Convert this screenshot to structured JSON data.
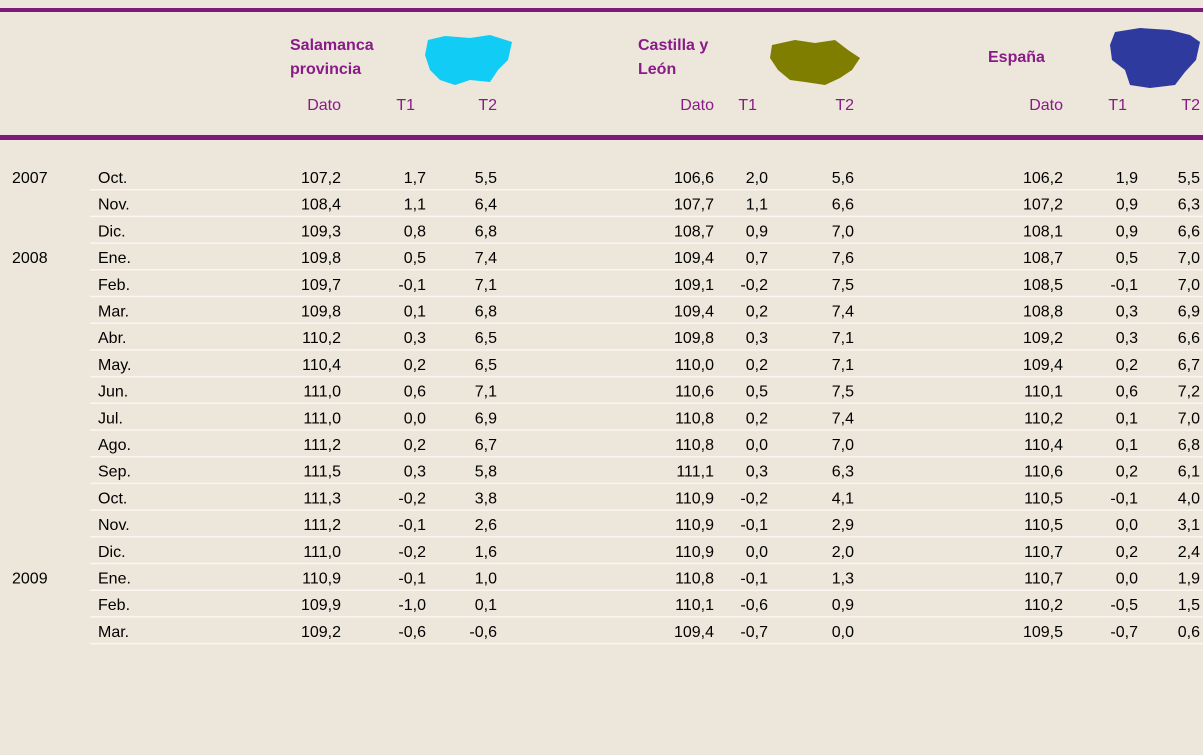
{
  "table": {
    "groups": [
      "Salamanca",
      "provincia",
      "Castilla y",
      "León",
      "España"
    ],
    "columns": [
      "Dato",
      "T1",
      "T2",
      "Dato",
      "T1",
      "T2",
      "Dato",
      "T1",
      "T2"
    ],
    "rows": [
      [
        "2007",
        "Oct.",
        "107,2",
        "1,7",
        "5,5",
        "106,6",
        "2,0",
        "5,6",
        "106,2",
        "1,9",
        "5,5"
      ],
      [
        null,
        "Nov.",
        "108,4",
        "1,1",
        "6,4",
        "107,7",
        "1,1",
        "6,6",
        "107,2",
        "0,9",
        "6,3"
      ],
      [
        null,
        "Dic.",
        "109,3",
        "0,8",
        "6,8",
        "108,7",
        "0,9",
        "7,0",
        "108,1",
        "0,9",
        "6,6"
      ],
      [
        "2008",
        "Ene.",
        "109,8",
        "0,5",
        "7,4",
        "109,4",
        "0,7",
        "7,6",
        "108,7",
        "0,5",
        "7,0"
      ],
      [
        null,
        "Feb.",
        "109,7",
        "-0,1",
        "7,1",
        "109,1",
        "-0,2",
        "7,5",
        "108,5",
        "-0,1",
        "7,0"
      ],
      [
        null,
        "Mar.",
        "109,8",
        "0,1",
        "6,8",
        "109,4",
        "0,2",
        "7,4",
        "108,8",
        "0,3",
        "6,9"
      ],
      [
        null,
        "Abr.",
        "110,2",
        "0,3",
        "6,5",
        "109,8",
        "0,3",
        "7,1",
        "109,2",
        "0,3",
        "6,6"
      ],
      [
        null,
        "May.",
        "110,4",
        "0,2",
        "6,5",
        "110,0",
        "0,2",
        "7,1",
        "109,4",
        "0,2",
        "6,7"
      ],
      [
        null,
        "Jun.",
        "111,0",
        "0,6",
        "7,1",
        "110,6",
        "0,5",
        "7,5",
        "110,1",
        "0,6",
        "7,2"
      ],
      [
        null,
        "Jul.",
        "111,0",
        "0,0",
        "6,9",
        "110,8",
        "0,2",
        "7,4",
        "110,2",
        "0,1",
        "7,0"
      ],
      [
        null,
        "Ago.",
        "111,2",
        "0,2",
        "6,7",
        "110,8",
        "0,0",
        "7,0",
        "110,4",
        "0,1",
        "6,8"
      ],
      [
        null,
        "Sep.",
        "111,5",
        "0,3",
        "5,8",
        "111,1",
        "0,3",
        "6,3",
        "110,6",
        "0,2",
        "6,1"
      ],
      [
        null,
        "Oct.",
        "111,3",
        "-0,2",
        "3,8",
        "110,9",
        "-0,2",
        "4,1",
        "110,5",
        "-0,1",
        "4,0"
      ],
      [
        null,
        "Nov.",
        "111,2",
        "-0,1",
        "2,6",
        "110,9",
        "-0,1",
        "2,9",
        "110,5",
        "0,0",
        "3,1"
      ],
      [
        null,
        "Dic.",
        "111,0",
        "-0,2",
        "1,6",
        "110,9",
        "0,0",
        "2,0",
        "110,7",
        "0,2",
        "2,4"
      ],
      [
        "2009",
        "Ene.",
        "110,9",
        "-0,1",
        "1,0",
        "110,8",
        "-0,1",
        "1,3",
        "110,7",
        "0,0",
        "1,9"
      ],
      [
        null,
        "Feb.",
        "109,9",
        "-1,0",
        "0,1",
        "110,1",
        "-0,6",
        "0,9",
        "110,2",
        "-0,5",
        "1,5"
      ],
      [
        null,
        "Mar.",
        "109,2",
        "-0,6",
        "-0,6",
        "109,4",
        "-0,7",
        "0,0",
        "109,5",
        "-0,7",
        "0,6"
      ]
    ]
  }
}
